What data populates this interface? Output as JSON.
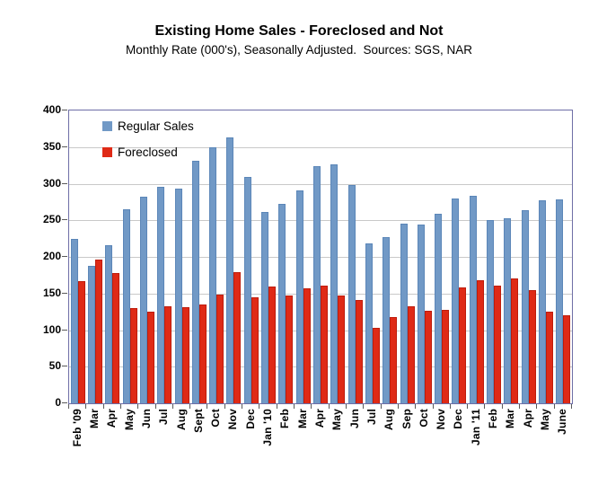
{
  "header": {
    "title": "Existing Home Sales - Foreclosed and Not",
    "subtitle": "Monthly Rate (000's), Seasonally Adjusted.  Sources: SGS, NAR"
  },
  "chart_data": {
    "type": "bar",
    "title": "Existing Home Sales - Foreclosed and Not",
    "subtitle": "Monthly Rate (000's), Seasonally Adjusted.  Sources: SGS, NAR",
    "categories": [
      "Feb '09",
      "Mar",
      "Apr",
      "May",
      "Jun",
      "Jul",
      "Aug",
      "Sept",
      "Oct",
      "Nov",
      "Dec",
      "Jan '10",
      "Feb",
      "Mar",
      "Apr",
      "May",
      "Jun",
      "Jul",
      "Aug",
      "Sep",
      "Oct",
      "Nov",
      "Dec",
      "Jan '11",
      "Feb",
      "Mar",
      "Apr",
      "May",
      "June"
    ],
    "series": [
      {
        "name": "Regular Sales",
        "color": "#7199C6",
        "border_color": "#5B86B8",
        "values": [
          225,
          188,
          216,
          265,
          282,
          296,
          293,
          331,
          350,
          363,
          309,
          261,
          272,
          291,
          324,
          326,
          298,
          219,
          227,
          246,
          244,
          259,
          280,
          284,
          250,
          253,
          264,
          277,
          279
        ]
      },
      {
        "name": "Foreclosed",
        "color": "#DF2A16",
        "border_color": "#BE1C0B",
        "values": [
          167,
          196,
          178,
          130,
          125,
          132,
          131,
          135,
          148,
          179,
          145,
          160,
          147,
          157,
          161,
          147,
          141,
          103,
          118,
          133,
          126,
          128,
          158,
          168,
          161,
          171,
          155,
          125,
          120
        ]
      }
    ],
    "ylim": [
      0,
      400
    ],
    "yticks": [
      0,
      50,
      100,
      150,
      200,
      250,
      300,
      350,
      400
    ],
    "grid": true,
    "legend_position": "top-left-inside"
  },
  "colors": {
    "background": "#FFFFFF",
    "plot_border": "#6E6EA6",
    "gridline": "#C9C9C9",
    "text": "#000000"
  }
}
